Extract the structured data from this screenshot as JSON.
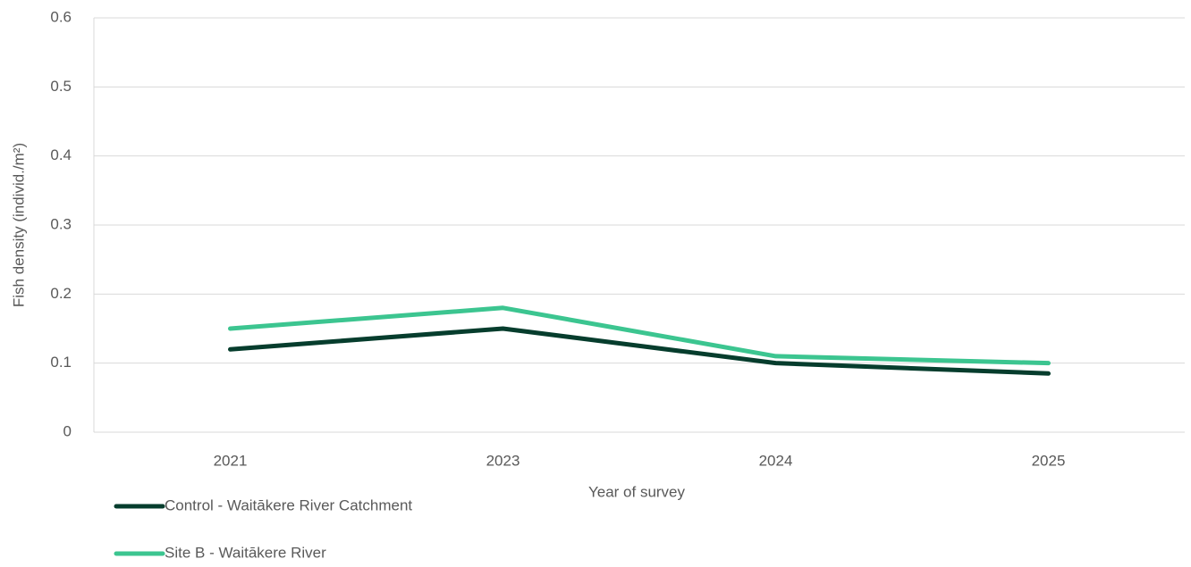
{
  "chart_data": {
    "type": "line",
    "x_label": "Year of survey",
    "y_label": "Fish density  (individ./m²)",
    "categories": [
      "2021",
      "2023",
      "2024",
      "2025"
    ],
    "series": [
      {
        "name": "Control - Waitākere River Catchment",
        "color": "#063d2d",
        "values": [
          0.12,
          0.15,
          0.1,
          0.085
        ]
      },
      {
        "name": "Site B - Waitākere River",
        "color": "#3cc590",
        "values": [
          0.15,
          0.18,
          0.11,
          0.1
        ]
      }
    ],
    "ylim": [
      0,
      0.6
    ],
    "yticks": [
      0,
      0.1,
      0.2,
      0.3,
      0.4,
      0.5,
      0.6
    ],
    "grid": true
  }
}
